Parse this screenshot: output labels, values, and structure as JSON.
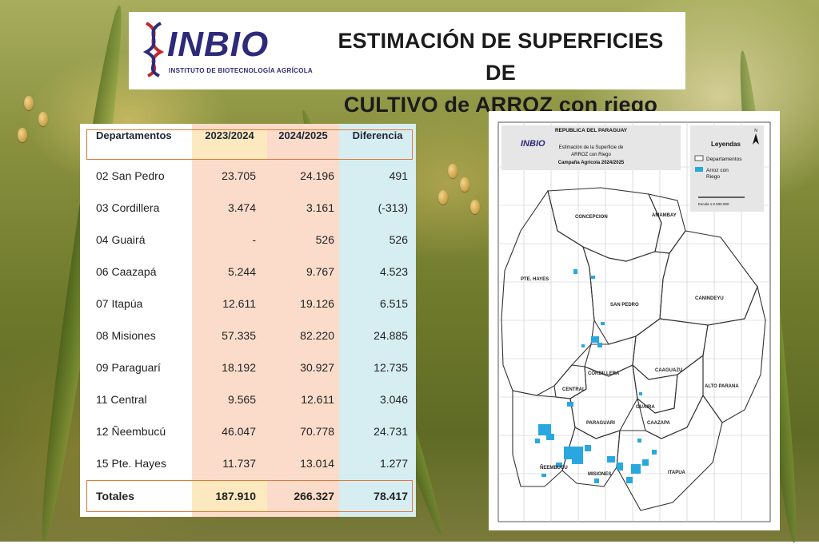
{
  "header": {
    "logo_word": "INBIO",
    "logo_subtitle": "INSTITUTO DE BIOTECNOLOGÍA AGRÍCOLA",
    "title_line1": "ESTIMACIÓN DE SUPERFICIES DE",
    "title_line2": "CULTIVO de ARROZ con riego"
  },
  "table": {
    "headers": [
      "Departamentos",
      "2023/2024",
      "2024/2025",
      "Diferencia"
    ],
    "rows": [
      [
        "02 San Pedro",
        "23.705",
        "24.196",
        "491"
      ],
      [
        "03 Cordillera",
        "3.474",
        "3.161",
        "(-313)"
      ],
      [
        "04 Guairá",
        "-",
        "526",
        "526"
      ],
      [
        "06 Caazapá",
        "5.244",
        "9.767",
        "4.523"
      ],
      [
        "07 Itapúa",
        "12.611",
        "19.126",
        "6.515"
      ],
      [
        "08 Misiones",
        "57.335",
        "82.220",
        "24.885"
      ],
      [
        "09 Paraguarí",
        "18.192",
        "30.927",
        "12.735"
      ],
      [
        "11 Central",
        "9.565",
        "12.611",
        "3.046"
      ],
      [
        "12 Ñeembucú",
        "46.047",
        "70.778",
        "24.731"
      ],
      [
        "15 Pte. Hayes",
        "11.737",
        "13.014",
        "1.277"
      ]
    ],
    "totals": [
      "Totales",
      "187.910",
      "266.327",
      "78.417"
    ]
  },
  "map": {
    "country": "REPUBLICA DEL PARAGUAY",
    "logo_word": "INBIO",
    "subtitle_line1": "Estimación de la Superficie de",
    "subtitle_line2": "ARROZ con Riego",
    "subtitle_line3": "Campaña Agrícola 2024/2025",
    "legend_title": "Leyendas",
    "legend_departments": "Departamentos",
    "legend_rice_line1": "Arroz con",
    "legend_rice_line2": "Riego",
    "scale": "Escala 1:2.500.000",
    "north": "N",
    "departments": [
      "CONCEPCION",
      "AMAMBAY",
      "PTE. HAYES",
      "SAN PEDRO",
      "CANINDEYU",
      "CORDILLERA",
      "CAAGUAZU",
      "CENTRAL",
      "ALTO PARANA",
      "GUAIRA",
      "PARAGUARI",
      "CAAZAPA",
      "ÑEEMBUCU",
      "MISIONES",
      "ITAPUA"
    ],
    "rice_color": "#29a8e0"
  }
}
